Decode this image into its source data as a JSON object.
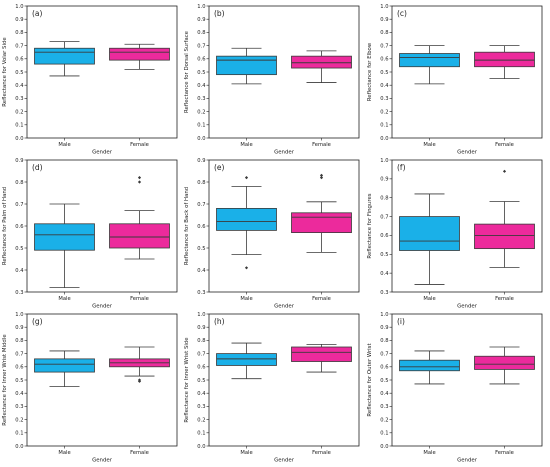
{
  "colors": {
    "male": "#1ab0e8",
    "female": "#ec2a9c",
    "line": "#3a3a3a",
    "frame": "#222222"
  },
  "chart_data": [
    {
      "type": "box",
      "label": "(a)",
      "xlabel": "Gender",
      "ylabel": "Reflectance for Volar Side",
      "ylim": [
        0.0,
        1.0
      ],
      "yticks": [
        "0.0",
        "0.1",
        "0.2",
        "0.3",
        "0.4",
        "0.5",
        "0.6",
        "0.7",
        "0.8",
        "0.9",
        "1.0"
      ],
      "categories": [
        "Male",
        "Female"
      ],
      "boxes": [
        {
          "name": "Male",
          "whislo": 0.47,
          "q1": 0.56,
          "med": 0.65,
          "q3": 0.68,
          "whishi": 0.73,
          "fliers": []
        },
        {
          "name": "Female",
          "whislo": 0.52,
          "q1": 0.59,
          "med": 0.65,
          "q3": 0.68,
          "whishi": 0.71,
          "fliers": []
        }
      ]
    },
    {
      "type": "box",
      "label": "(b)",
      "xlabel": "Gender",
      "ylabel": "Reflectance for Dorsal Surface",
      "ylim": [
        0.0,
        1.0
      ],
      "yticks": [
        "0.0",
        "0.1",
        "0.2",
        "0.3",
        "0.4",
        "0.5",
        "0.6",
        "0.7",
        "0.8",
        "0.9",
        "1.0"
      ],
      "categories": [
        "Male",
        "Female"
      ],
      "boxes": [
        {
          "name": "Male",
          "whislo": 0.41,
          "q1": 0.48,
          "med": 0.59,
          "q3": 0.62,
          "whishi": 0.68,
          "fliers": []
        },
        {
          "name": "Female",
          "whislo": 0.42,
          "q1": 0.53,
          "med": 0.57,
          "q3": 0.62,
          "whishi": 0.66,
          "fliers": []
        }
      ]
    },
    {
      "type": "box",
      "label": "(c)",
      "xlabel": "Gender",
      "ylabel": "Reflectance for Elbow",
      "ylim": [
        0.0,
        1.0
      ],
      "yticks": [
        "0.0",
        "0.1",
        "0.2",
        "0.3",
        "0.4",
        "0.5",
        "0.6",
        "0.7",
        "0.8",
        "0.9",
        "1.0"
      ],
      "categories": [
        "Male",
        "Female"
      ],
      "boxes": [
        {
          "name": "Male",
          "whislo": 0.41,
          "q1": 0.54,
          "med": 0.61,
          "q3": 0.64,
          "whishi": 0.7,
          "fliers": []
        },
        {
          "name": "Female",
          "whislo": 0.45,
          "q1": 0.54,
          "med": 0.59,
          "q3": 0.65,
          "whishi": 0.7,
          "fliers": []
        }
      ]
    },
    {
      "type": "box",
      "label": "(d)",
      "xlabel": "Gender",
      "ylabel": "Reflectance for Palm of Hand",
      "ylim": [
        0.3,
        0.9
      ],
      "yticks": [
        "0.3",
        "0.4",
        "0.5",
        "0.6",
        "0.7",
        "0.8",
        "0.9"
      ],
      "categories": [
        "Male",
        "Female"
      ],
      "boxes": [
        {
          "name": "Male",
          "whislo": 0.32,
          "q1": 0.49,
          "med": 0.56,
          "q3": 0.61,
          "whishi": 0.7,
          "fliers": []
        },
        {
          "name": "Female",
          "whislo": 0.45,
          "q1": 0.5,
          "med": 0.55,
          "q3": 0.61,
          "whishi": 0.67,
          "fliers": [
            0.8,
            0.82
          ]
        }
      ]
    },
    {
      "type": "box",
      "label": "(e)",
      "xlabel": "Gender",
      "ylabel": "Reflectance for Back of Hand",
      "ylim": [
        0.3,
        0.9
      ],
      "yticks": [
        "0.3",
        "0.4",
        "0.5",
        "0.6",
        "0.7",
        "0.8",
        "0.9"
      ],
      "categories": [
        "Male",
        "Female"
      ],
      "boxes": [
        {
          "name": "Male",
          "whislo": 0.47,
          "q1": 0.58,
          "med": 0.62,
          "q3": 0.68,
          "whishi": 0.78,
          "fliers": [
            0.41,
            0.82
          ]
        },
        {
          "name": "Female",
          "whislo": 0.48,
          "q1": 0.57,
          "med": 0.64,
          "q3": 0.66,
          "whishi": 0.71,
          "fliers": [
            0.82,
            0.83
          ]
        }
      ]
    },
    {
      "type": "box",
      "label": "(f)",
      "xlabel": "Gender",
      "ylabel": "Reflectance for Fingures",
      "ylim": [
        0.3,
        1.0
      ],
      "yticks": [
        "0.3",
        "0.4",
        "0.5",
        "0.6",
        "0.7",
        "0.8",
        "0.9",
        "1.0"
      ],
      "categories": [
        "Male",
        "Female"
      ],
      "boxes": [
        {
          "name": "Male",
          "whislo": 0.34,
          "q1": 0.52,
          "med": 0.57,
          "q3": 0.7,
          "whishi": 0.82,
          "fliers": []
        },
        {
          "name": "Female",
          "whislo": 0.43,
          "q1": 0.53,
          "med": 0.6,
          "q3": 0.66,
          "whishi": 0.78,
          "fliers": [
            0.94
          ]
        }
      ]
    },
    {
      "type": "box",
      "label": "(g)",
      "xlabel": "Gender",
      "ylabel": "Reflectance for Inner Wrist Middle",
      "ylim": [
        0.0,
        1.0
      ],
      "yticks": [
        "0.0",
        "0.1",
        "0.2",
        "0.3",
        "0.4",
        "0.5",
        "0.6",
        "0.7",
        "0.8",
        "0.9",
        "1.0"
      ],
      "categories": [
        "Male",
        "Female"
      ],
      "boxes": [
        {
          "name": "Male",
          "whislo": 0.45,
          "q1": 0.56,
          "med": 0.62,
          "q3": 0.66,
          "whishi": 0.72,
          "fliers": []
        },
        {
          "name": "Female",
          "whislo": 0.53,
          "q1": 0.6,
          "med": 0.63,
          "q3": 0.66,
          "whishi": 0.75,
          "fliers": [
            0.49,
            0.5
          ]
        }
      ]
    },
    {
      "type": "box",
      "label": "(h)",
      "xlabel": "Gender",
      "ylabel": "Reflectance for Inner Wrist Side",
      "ylim": [
        0.0,
        1.0
      ],
      "yticks": [
        "0.0",
        "0.1",
        "0.2",
        "0.3",
        "0.4",
        "0.5",
        "0.6",
        "0.7",
        "0.8",
        "0.9",
        "1.0"
      ],
      "categories": [
        "Male",
        "Female"
      ],
      "boxes": [
        {
          "name": "Male",
          "whislo": 0.51,
          "q1": 0.61,
          "med": 0.66,
          "q3": 0.7,
          "whishi": 0.78,
          "fliers": []
        },
        {
          "name": "Female",
          "whislo": 0.56,
          "q1": 0.64,
          "med": 0.71,
          "q3": 0.75,
          "whishi": 0.77,
          "fliers": []
        }
      ]
    },
    {
      "type": "box",
      "label": "(i)",
      "xlabel": "Gender",
      "ylabel": "Reflectance for Outer Wrist",
      "ylim": [
        0.0,
        1.0
      ],
      "yticks": [
        "0.0",
        "0.1",
        "0.2",
        "0.3",
        "0.4",
        "0.5",
        "0.6",
        "0.7",
        "0.8",
        "0.9",
        "1.0"
      ],
      "categories": [
        "Male",
        "Female"
      ],
      "boxes": [
        {
          "name": "Male",
          "whislo": 0.47,
          "q1": 0.57,
          "med": 0.6,
          "q3": 0.65,
          "whishi": 0.72,
          "fliers": []
        },
        {
          "name": "Female",
          "whislo": 0.47,
          "q1": 0.58,
          "med": 0.62,
          "q3": 0.68,
          "whishi": 0.75,
          "fliers": []
        }
      ]
    }
  ]
}
